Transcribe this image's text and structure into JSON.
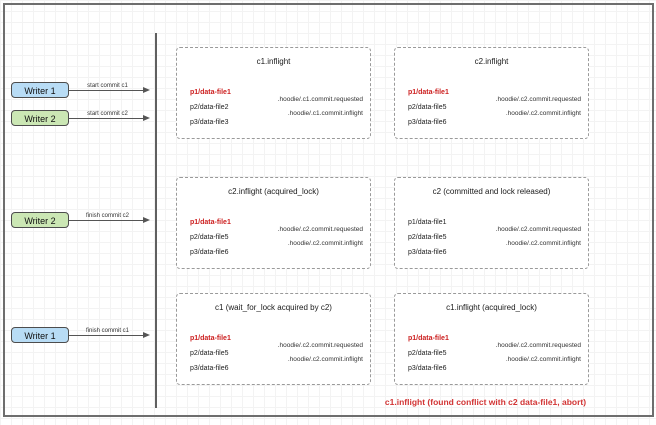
{
  "writers": [
    {
      "label": "Writer 1",
      "arrow_label": "start commit c1"
    },
    {
      "label": "Writer 2",
      "arrow_label": "start commit c2"
    },
    {
      "label": "Writer 2",
      "arrow_label": "finish commit c2"
    },
    {
      "label": "Writer 1",
      "arrow_label": "finish commit c1"
    }
  ],
  "states": [
    {
      "title": "c1.inflight",
      "files": [
        {
          "text": "p1/data-file1",
          "highlight": true
        },
        {
          "text": "p2/data-file2",
          "highlight": false
        },
        {
          "text": "p3/data-file3",
          "highlight": false
        }
      ],
      "timeline": [
        ".hoodie/.c1.commit.requested",
        ".hoodie/.c1.commit.inflight"
      ]
    },
    {
      "title": "c2.inflight",
      "files": [
        {
          "text": "p1/data-file1",
          "highlight": true
        },
        {
          "text": "p2/data-file5",
          "highlight": false
        },
        {
          "text": "p3/data-file6",
          "highlight": false
        }
      ],
      "timeline": [
        ".hoodie/.c2.commit.requested",
        ".hoodie/.c2.commit.inflight"
      ]
    },
    {
      "title": "c2.inflight (acquired_lock)",
      "files": [
        {
          "text": "p1/data-file1",
          "highlight": true
        },
        {
          "text": "p2/data-file5",
          "highlight": false
        },
        {
          "text": "p3/data-file6",
          "highlight": false
        }
      ],
      "timeline": [
        ".hoodie/.c2.commit.requested",
        ".hoodie/.c2.commit.inflight"
      ]
    },
    {
      "title": "c2 (committed and lock released)",
      "files": [
        {
          "text": "p1/data-file1",
          "highlight": false
        },
        {
          "text": "p2/data-file5",
          "highlight": false
        },
        {
          "text": "p3/data-file6",
          "highlight": false
        }
      ],
      "timeline": [
        ".hoodie/.c2.commit.requested",
        ".hoodie/.c2.commit.inflight"
      ]
    },
    {
      "title": "c1 (wait_for_lock acquired by c2)",
      "files": [
        {
          "text": "p1/data-file1",
          "highlight": true
        },
        {
          "text": "p2/data-file5",
          "highlight": false
        },
        {
          "text": "p3/data-file6",
          "highlight": false
        }
      ],
      "timeline": [
        ".hoodie/.c2.commit.requested",
        ".hoodie/.c2.commit.inflight"
      ]
    },
    {
      "title": "c1.inflight (acquired_lock)",
      "files": [
        {
          "text": "p1/data-file1",
          "highlight": true
        },
        {
          "text": "p2/data-file5",
          "highlight": false
        },
        {
          "text": "p3/data-file6",
          "highlight": false
        }
      ],
      "timeline": [
        ".hoodie/.c2.commit.requested",
        ".hoodie/.c2.commit.inflight"
      ]
    }
  ],
  "annotation": {
    "text": "c1.inflight (found conflict with c2 data-file1, abort)"
  },
  "colors": {
    "writer1_fill": "#b8dcf5",
    "writer2_fill": "#cbe7b4",
    "highlight_red": "#cc2020",
    "annotation_red": "#d23434",
    "box_border": "#9a9a9a"
  }
}
